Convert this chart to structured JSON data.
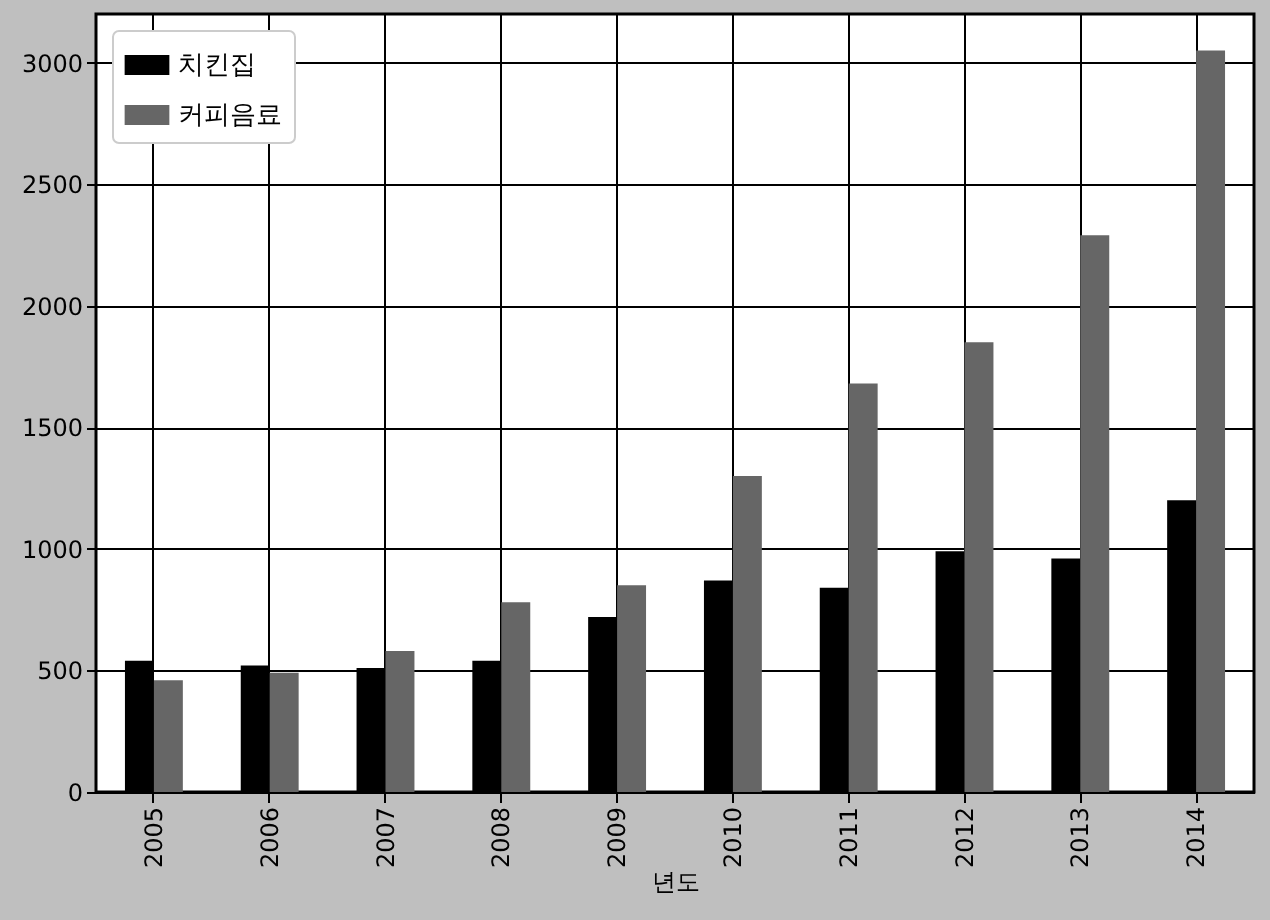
{
  "chart_data": {
    "type": "bar",
    "xlabel": "년도",
    "categories": [
      "2005",
      "2006",
      "2007",
      "2008",
      "2009",
      "2010",
      "2011",
      "2012",
      "2013",
      "2014"
    ],
    "series": [
      {
        "name": "치킨집",
        "color": "#000000",
        "values": [
          540,
          520,
          510,
          540,
          720,
          870,
          840,
          990,
          960,
          1200
        ]
      },
      {
        "name": "커피음료",
        "color": "#666666",
        "values": [
          460,
          490,
          580,
          780,
          850,
          1300,
          1680,
          1850,
          2290,
          3050
        ]
      }
    ],
    "ylim": [
      0,
      3200
    ],
    "yticks": [
      0,
      500,
      1000,
      1500,
      2000,
      2500,
      3000
    ],
    "grid": true,
    "legend": "top left"
  }
}
